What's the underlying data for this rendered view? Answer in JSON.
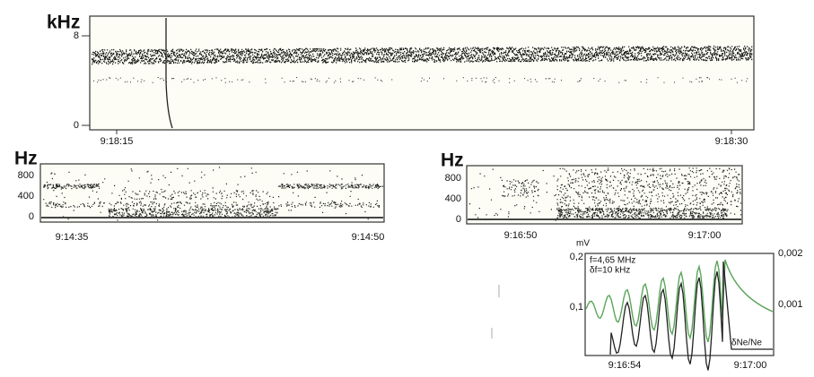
{
  "panels": [
    {
      "unit": "kHz",
      "yticks": [
        "8",
        "0"
      ],
      "xticks": [
        "9:18:15",
        "9:18:30"
      ]
    },
    {
      "unit": "Hz",
      "yticks": [
        "800",
        "400",
        "0"
      ],
      "xticks": [
        "9:14:35",
        "9:14:50"
      ]
    },
    {
      "unit": "Hz",
      "yticks": [
        "800",
        "400",
        "0"
      ],
      "xticks": [
        "9:16:50",
        "9:17:00"
      ]
    },
    {
      "left_unit": "mV",
      "left_ticks": [
        "0,2",
        "0,1"
      ],
      "right_ticks": [
        "0,002",
        "0,001"
      ],
      "annotations": [
        "f=4,65 MHz",
        "δf=10 kHz",
        "δNe/Ne"
      ],
      "xticks": [
        "9:16:54",
        "9:17:00"
      ]
    }
  ]
}
